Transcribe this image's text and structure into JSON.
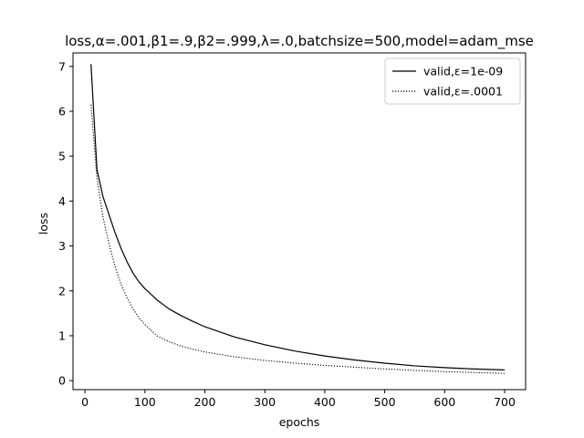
{
  "chart_data": {
    "type": "line",
    "title": "loss,α=.001,β1=.9,β2=.999,λ=.0,batchsize=500,model=adam_mse",
    "xlabel": "epochs",
    "ylabel": "loss",
    "xlim": [
      -20,
      735
    ],
    "ylim": [
      -0.2,
      7.3
    ],
    "xticks": [
      0,
      100,
      200,
      300,
      400,
      500,
      600,
      700
    ],
    "yticks": [
      0,
      1,
      2,
      3,
      4,
      5,
      6,
      7
    ],
    "grid": false,
    "legend_position": "top-right",
    "series": [
      {
        "name": "valid,ε=1e-09",
        "style": "solid",
        "color": "#000000",
        "x": [
          10,
          20,
          30,
          40,
          50,
          60,
          70,
          80,
          90,
          100,
          120,
          140,
          160,
          180,
          200,
          250,
          300,
          350,
          400,
          450,
          500,
          550,
          600,
          650,
          700
        ],
        "y": [
          7.05,
          4.7,
          4.1,
          3.7,
          3.3,
          2.95,
          2.65,
          2.4,
          2.2,
          2.05,
          1.8,
          1.6,
          1.45,
          1.32,
          1.2,
          0.97,
          0.8,
          0.66,
          0.55,
          0.46,
          0.39,
          0.33,
          0.29,
          0.26,
          0.24
        ]
      },
      {
        "name": "valid,ε=.0001",
        "style": "dotted",
        "color": "#000000",
        "x": [
          10,
          20,
          30,
          40,
          50,
          60,
          70,
          80,
          90,
          100,
          120,
          140,
          160,
          180,
          200,
          250,
          300,
          350,
          400,
          450,
          500,
          550,
          600,
          650,
          700
        ],
        "y": [
          6.15,
          4.5,
          3.65,
          3.05,
          2.55,
          2.15,
          1.85,
          1.6,
          1.4,
          1.25,
          1.0,
          0.87,
          0.77,
          0.7,
          0.64,
          0.53,
          0.45,
          0.39,
          0.34,
          0.3,
          0.26,
          0.23,
          0.2,
          0.18,
          0.16
        ]
      }
    ]
  }
}
